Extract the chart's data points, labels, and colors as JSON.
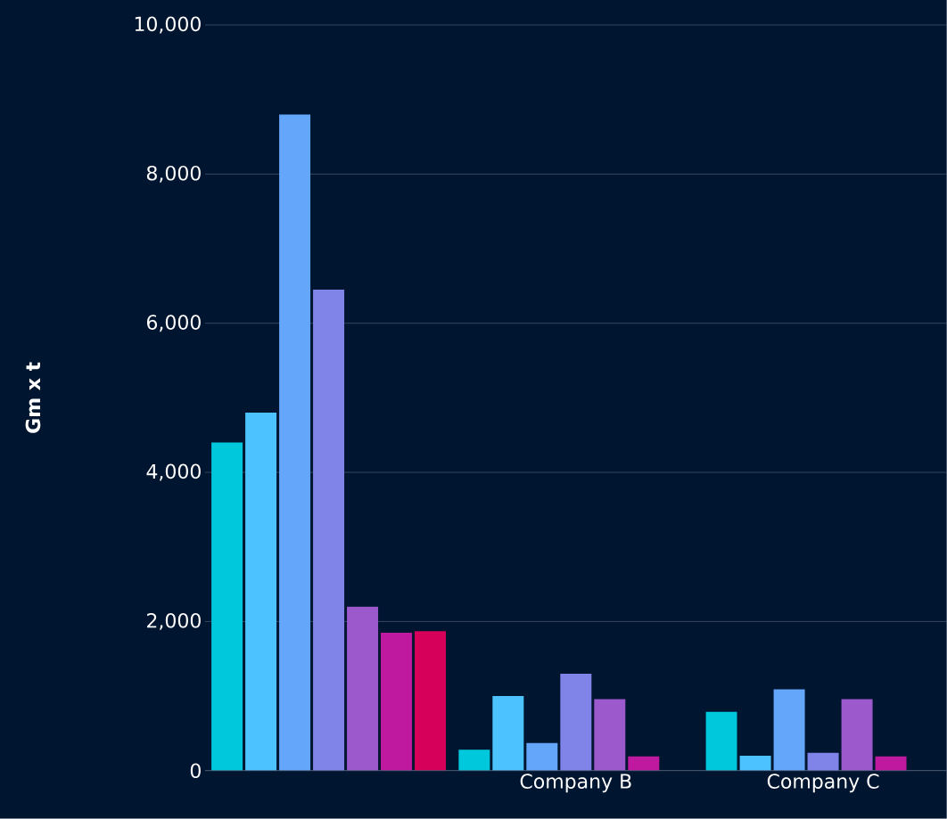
{
  "chart_data": {
    "type": "bar",
    "ylabel": "Gm x t",
    "categories": [
      null,
      "Company B",
      "Company C"
    ],
    "series": [
      {
        "color": "#00c8dc",
        "values": [
          4400,
          280,
          790
        ]
      },
      {
        "color": "#4cc3ff",
        "values": [
          4800,
          1000,
          200
        ]
      },
      {
        "color": "#64a6fa",
        "values": [
          8800,
          370,
          1090
        ]
      },
      {
        "color": "#8084e8",
        "values": [
          6450,
          1300,
          240
        ]
      },
      {
        "color": "#9b59cc",
        "values": [
          2200,
          960,
          960
        ]
      },
      {
        "color": "#bf19a0",
        "values": [
          1850,
          190,
          190
        ]
      },
      {
        "color": "#d6005a",
        "values": [
          1870,
          null,
          null
        ]
      }
    ],
    "ylim": [
      0,
      10000
    ],
    "yticks": [
      {
        "value": 0,
        "label": "0"
      },
      {
        "value": 2000,
        "label": "2,000"
      },
      {
        "value": 4000,
        "label": "4,000"
      },
      {
        "value": 6000,
        "label": "6,000"
      },
      {
        "value": 8000,
        "label": "8,000"
      },
      {
        "value": 10000,
        "label": "10,000"
      }
    ],
    "grid": "y"
  }
}
